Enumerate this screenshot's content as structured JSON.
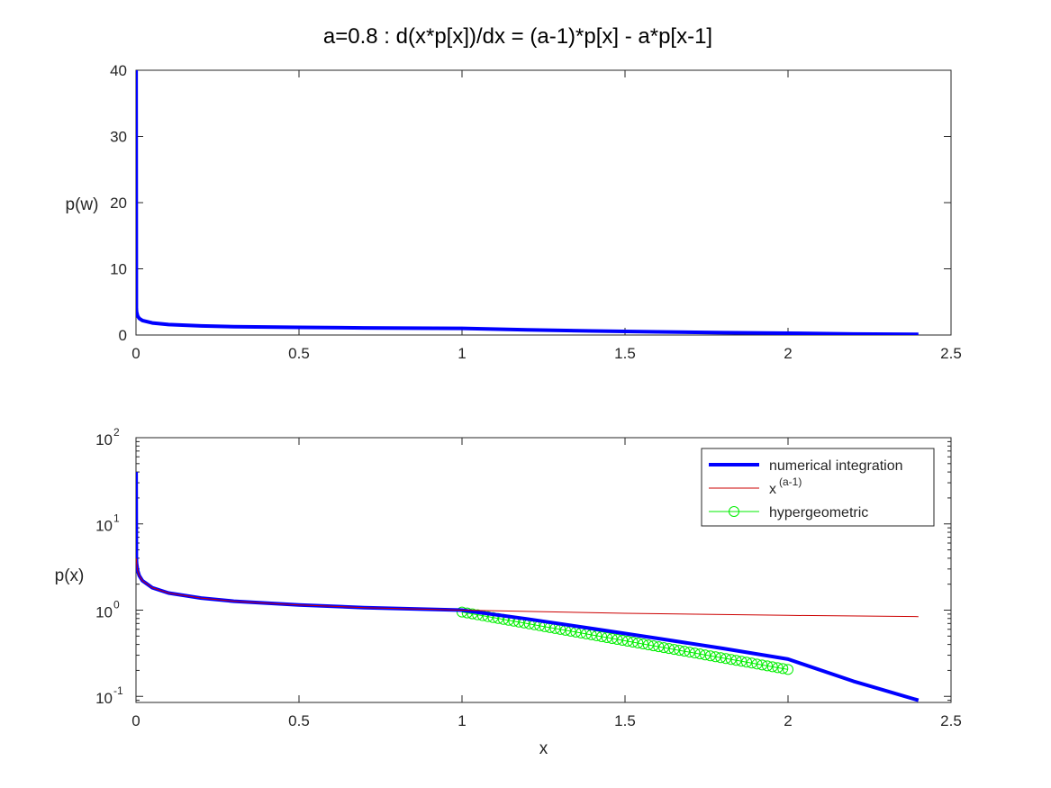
{
  "figure": {
    "title": "a=0.8 :  d(x*p[x])/dx = (a-1)*p[x] - a*p[x-1]"
  },
  "colors": {
    "numerical": "#0000ff",
    "power": "#cc0000",
    "hypergeometric": "#00ee00",
    "axes": "#262626"
  },
  "chart_data": [
    {
      "type": "line",
      "title": "",
      "xlabel": "",
      "ylabel": "p(w)",
      "xlim": [
        0,
        2.5
      ],
      "ylim": [
        0,
        40
      ],
      "xscale": "linear",
      "yscale": "linear",
      "xticks": [
        "0",
        "0.5",
        "1",
        "1.5",
        "2",
        "2.5"
      ],
      "yticks": [
        "0",
        "10",
        "20",
        "30",
        "40"
      ],
      "grid": false,
      "series": [
        {
          "key": "numerical",
          "style": "thick-line",
          "x": [
            0.0003,
            0.001,
            0.002,
            0.005,
            0.01,
            0.02,
            0.05,
            0.1,
            0.2,
            0.3,
            0.5,
            0.7,
            1.0,
            1.2,
            1.4,
            1.6,
            1.8,
            2.0,
            2.2,
            2.4
          ],
          "y": [
            40,
            3.98,
            3.47,
            2.88,
            2.51,
            2.19,
            1.82,
            1.58,
            1.38,
            1.27,
            1.15,
            1.07,
            1.0,
            0.79,
            0.61,
            0.47,
            0.36,
            0.27,
            0.15,
            0.09
          ]
        }
      ]
    },
    {
      "type": "line",
      "title": "",
      "xlabel": "x",
      "ylabel": "p(x)",
      "xlim": [
        0,
        2.5
      ],
      "ylim": [
        0.085,
        100
      ],
      "xscale": "linear",
      "yscale": "log",
      "xticks": [
        "0",
        "0.5",
        "1",
        "1.5",
        "2",
        "2.5"
      ],
      "yticks": [
        {
          "base": "10",
          "exp": "-1",
          "value": 0.1
        },
        {
          "base": "10",
          "exp": "0",
          "value": 1
        },
        {
          "base": "10",
          "exp": "1",
          "value": 10
        },
        {
          "base": "10",
          "exp": "2",
          "value": 100
        }
      ],
      "grid": false,
      "legend": {
        "position": "top-right",
        "entries": [
          {
            "key": "numerical",
            "label": "numerical integration"
          },
          {
            "key": "power",
            "label": "x",
            "superscript": "(a-1)"
          },
          {
            "key": "hypergeometric",
            "label": "hypergeometric"
          }
        ]
      },
      "series": [
        {
          "key": "numerical",
          "style": "thick-line",
          "x": [
            0.0003,
            0.001,
            0.002,
            0.005,
            0.01,
            0.02,
            0.05,
            0.1,
            0.2,
            0.3,
            0.5,
            0.7,
            1.0,
            1.2,
            1.4,
            1.6,
            1.8,
            2.0,
            2.2,
            2.4
          ],
          "y": [
            40,
            3.98,
            3.47,
            2.88,
            2.51,
            2.19,
            1.82,
            1.58,
            1.38,
            1.27,
            1.15,
            1.07,
            1.0,
            0.79,
            0.61,
            0.47,
            0.36,
            0.27,
            0.15,
            0.09
          ]
        },
        {
          "key": "power",
          "style": "thin-line",
          "x": [
            0.001,
            0.002,
            0.005,
            0.01,
            0.02,
            0.05,
            0.1,
            0.2,
            0.3,
            0.5,
            0.7,
            1.0,
            1.5,
            2.0,
            2.4
          ],
          "y": [
            3.98,
            3.47,
            2.88,
            2.51,
            2.19,
            1.82,
            1.58,
            1.38,
            1.27,
            1.15,
            1.07,
            1.0,
            0.92,
            0.87,
            0.84
          ]
        },
        {
          "key": "hypergeometric",
          "style": "circle-markers",
          "x_range": [
            1.0,
            2.0
          ],
          "y_range": [
            0.95,
            0.205
          ],
          "marker_count": 64
        }
      ]
    }
  ]
}
